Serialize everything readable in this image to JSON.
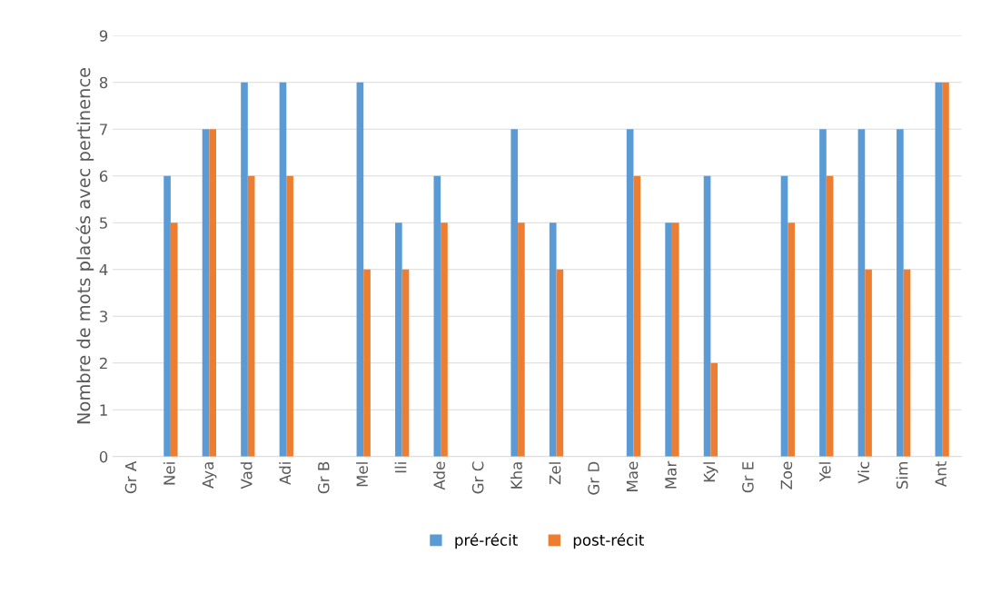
{
  "chart_data": {
    "type": "bar",
    "ylabel": "Nombre de mots placés avec pertinence",
    "categories": [
      "Gr A",
      "Nei",
      "Aya",
      "Vad",
      "Adi",
      "Gr B",
      "Mel",
      "Ili",
      "Ade",
      "Gr C",
      "Kha",
      "Zel",
      "Gr D",
      "Mae",
      "Mar",
      "Kyl",
      "Gr E",
      "Zoe",
      "Yel",
      "Vic",
      "Sim",
      "Ant"
    ],
    "series": [
      {
        "name": "pré-récit",
        "color": "#5b9bd5",
        "values": [
          null,
          6,
          7,
          8,
          8,
          null,
          8,
          5,
          6,
          null,
          7,
          5,
          null,
          7,
          5,
          6,
          null,
          6,
          7,
          7,
          7,
          8
        ]
      },
      {
        "name": "post-récit",
        "color": "#ed7d31",
        "values": [
          null,
          5,
          7,
          6,
          6,
          null,
          4,
          4,
          5,
          null,
          5,
          4,
          null,
          6,
          5,
          2,
          null,
          5,
          6,
          4,
          4,
          8
        ]
      }
    ],
    "ylim": [
      0,
      9
    ],
    "yticks": [
      0,
      1,
      2,
      3,
      4,
      5,
      6,
      7,
      8,
      9
    ],
    "grid": "y",
    "legend": "bottom"
  }
}
